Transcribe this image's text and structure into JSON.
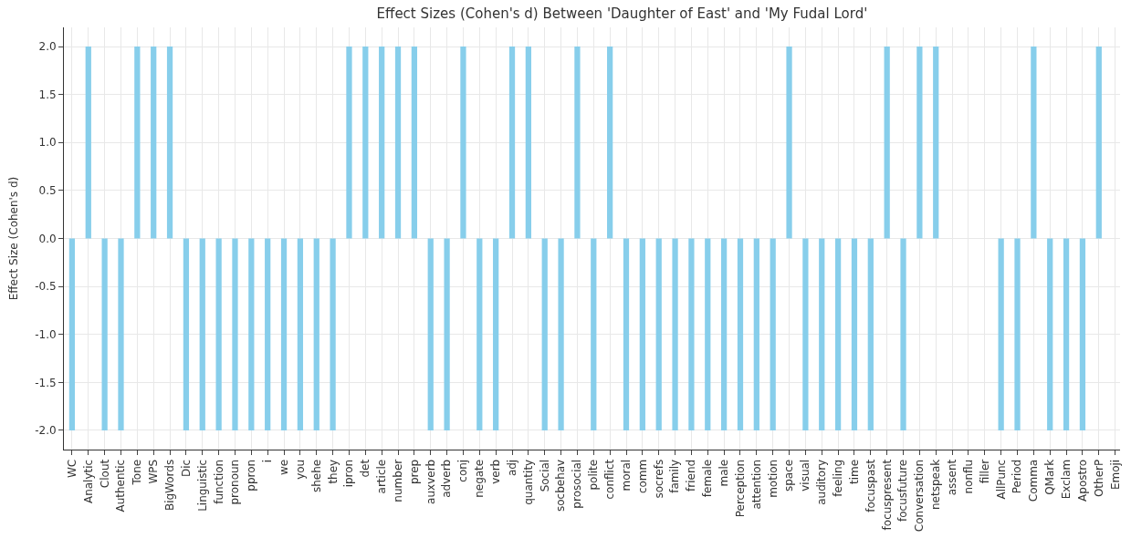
{
  "chart_data": {
    "type": "bar",
    "title": "Effect Sizes (Cohen's d) Between 'Daughter of East' and 'My Fudal Lord'",
    "ylabel": "Effect Size (Cohen's d)",
    "categories": [
      "WC",
      "Analytic",
      "Clout",
      "Authentic",
      "Tone",
      "WPS",
      "BigWords",
      "Dic",
      "Linguistic",
      "function",
      "pronoun",
      "ppron",
      "i",
      "we",
      "you",
      "shehe",
      "they",
      "ipron",
      "det",
      "article",
      "number",
      "prep",
      "auxverb",
      "adverb",
      "conj",
      "negate",
      "verb",
      "adj",
      "quantity",
      "Social",
      "socbehav",
      "prosocial",
      "polite",
      "conflict",
      "moral",
      "comm",
      "socrefs",
      "family",
      "friend",
      "female",
      "male",
      "Perception",
      "attention",
      "motion",
      "space",
      "visual",
      "auditory",
      "feeling",
      "time",
      "focuspast",
      "focuspresent",
      "focusfuture",
      "Conversation",
      "netspeak",
      "assent",
      "nonflu",
      "filler",
      "AllPunc",
      "Period",
      "Comma",
      "QMark",
      "Exclam",
      "Apostro",
      "OtherP",
      "Emoji"
    ],
    "values": [
      -2,
      2,
      -2,
      -2,
      2,
      2,
      2,
      -2,
      -2,
      -2,
      -2,
      -2,
      -2,
      -2,
      -2,
      -2,
      -2,
      2,
      2,
      2,
      2,
      2,
      -2,
      -2,
      2,
      -2,
      -2,
      2,
      2,
      -2,
      -2,
      2,
      -2,
      2,
      -2,
      -2,
      -2,
      -2,
      -2,
      -2,
      -2,
      -2,
      -2,
      -2,
      2,
      -2,
      -2,
      -2,
      -2,
      -2,
      2,
      -2,
      2,
      2,
      null,
      null,
      null,
      -2,
      -2,
      2,
      -2,
      -2,
      -2,
      2,
      null
    ],
    "color": "#87ceeb",
    "ylim": [
      -2.2,
      2.2
    ],
    "yticks": [
      {
        "value": -2,
        "label": "-2.0"
      },
      {
        "value": -1.5,
        "label": "-1.5"
      },
      {
        "value": -1,
        "label": "-1.0"
      },
      {
        "value": -0.5,
        "label": "-0.5"
      },
      {
        "value": 0,
        "label": "0.0"
      },
      {
        "value": 0.5,
        "label": "0.5"
      },
      {
        "value": 1,
        "label": "1.0"
      },
      {
        "value": 1.5,
        "label": "1.5"
      },
      {
        "value": 2,
        "label": "2.0"
      }
    ],
    "grid": true
  }
}
